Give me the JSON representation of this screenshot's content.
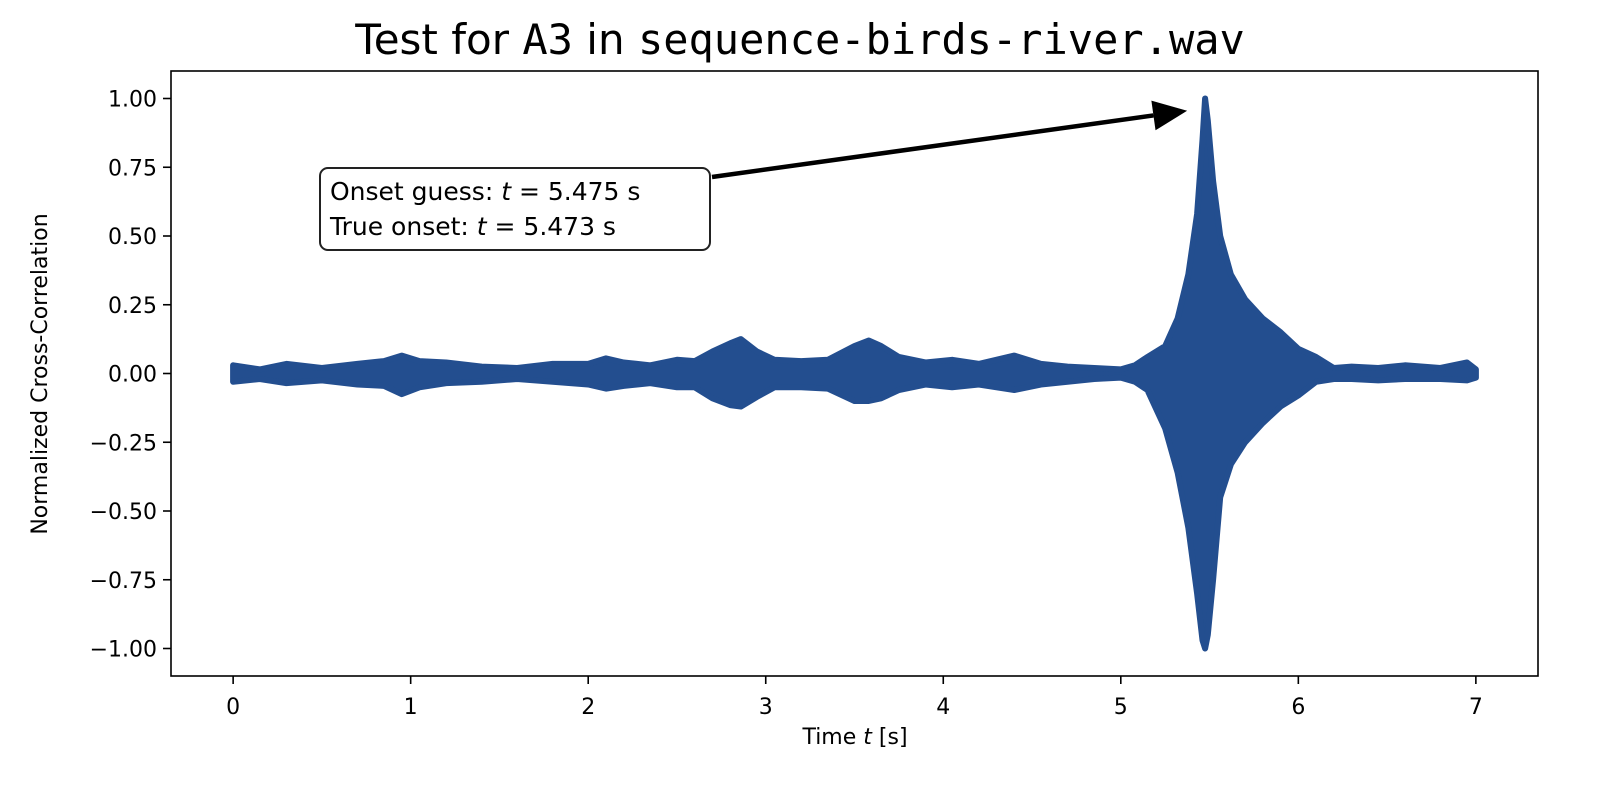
{
  "chart_data": {
    "type": "line",
    "title": {
      "prefix": "Test for ",
      "sound_name": "A3",
      "middle": " in ",
      "file_name": "sequence-birds-river.wav"
    },
    "xlabel": {
      "before": "Time ",
      "var": "t",
      "after": " [s]"
    },
    "ylabel": "Normalized Cross-Correlation",
    "xlim": [
      -0.35,
      7.35
    ],
    "ylim": [
      -1.1,
      1.1
    ],
    "xticks": [
      0,
      1,
      2,
      3,
      4,
      5,
      6,
      7
    ],
    "xtick_labels": [
      "0",
      "1",
      "2",
      "3",
      "4",
      "5",
      "6",
      "7"
    ],
    "yticks": [
      1.0,
      0.75,
      0.5,
      0.25,
      0.0,
      -0.25,
      -0.5,
      -0.75,
      -1.0
    ],
    "ytick_labels": [
      "1.00",
      "0.75",
      "0.50",
      "0.25",
      "0.00",
      "−0.25",
      "−0.50",
      "−0.75",
      "−1.00"
    ],
    "grid": false,
    "legend": "none",
    "series": [
      {
        "color": "#234e8f",
        "style": "dense oscillating signal shown as amplitude envelope",
        "envelope": {
          "x": [
            0.0,
            0.15,
            0.3,
            0.5,
            0.7,
            0.85,
            0.95,
            1.05,
            1.2,
            1.4,
            1.6,
            1.8,
            2.0,
            2.1,
            2.2,
            2.35,
            2.5,
            2.6,
            2.7,
            2.8,
            2.86,
            2.95,
            3.05,
            3.2,
            3.35,
            3.5,
            3.58,
            3.65,
            3.75,
            3.9,
            4.05,
            4.2,
            4.4,
            4.55,
            4.7,
            4.85,
            5.0,
            5.08,
            5.15,
            5.25,
            5.32,
            5.38,
            5.43,
            5.46,
            5.475,
            5.49,
            5.52,
            5.56,
            5.62,
            5.7,
            5.8,
            5.9,
            6.0,
            6.1,
            6.2,
            6.3,
            6.45,
            6.6,
            6.8,
            6.95,
            7.0
          ],
          "upper": [
            0.03,
            0.015,
            0.035,
            0.02,
            0.035,
            0.045,
            0.065,
            0.045,
            0.04,
            0.025,
            0.02,
            0.035,
            0.035,
            0.055,
            0.04,
            0.03,
            0.05,
            0.045,
            0.08,
            0.11,
            0.125,
            0.08,
            0.05,
            0.045,
            0.05,
            0.1,
            0.12,
            0.1,
            0.06,
            0.04,
            0.05,
            0.035,
            0.065,
            0.035,
            0.025,
            0.02,
            0.015,
            0.03,
            0.06,
            0.1,
            0.2,
            0.36,
            0.58,
            0.85,
            1.0,
            0.92,
            0.7,
            0.5,
            0.36,
            0.27,
            0.2,
            0.15,
            0.09,
            0.06,
            0.02,
            0.025,
            0.02,
            0.03,
            0.02,
            0.04,
            0.015
          ],
          "lower": [
            -0.03,
            -0.02,
            -0.035,
            -0.025,
            -0.04,
            -0.045,
            -0.075,
            -0.05,
            -0.035,
            -0.03,
            -0.02,
            -0.03,
            -0.04,
            -0.055,
            -0.045,
            -0.035,
            -0.05,
            -0.05,
            -0.09,
            -0.115,
            -0.12,
            -0.085,
            -0.05,
            -0.05,
            -0.055,
            -0.1,
            -0.1,
            -0.09,
            -0.06,
            -0.04,
            -0.05,
            -0.04,
            -0.06,
            -0.04,
            -0.03,
            -0.02,
            -0.015,
            -0.03,
            -0.06,
            -0.2,
            -0.36,
            -0.56,
            -0.8,
            -0.97,
            -1.0,
            -0.95,
            -0.75,
            -0.45,
            -0.33,
            -0.25,
            -0.18,
            -0.12,
            -0.08,
            -0.03,
            -0.02,
            -0.02,
            -0.025,
            -0.02,
            -0.02,
            -0.025,
            -0.015
          ]
        }
      }
    ],
    "annotation": {
      "line1_before": "Onset guess: ",
      "line1_var": "t",
      "line1_after": " = 5.475 s",
      "line2_before": "True onset: ",
      "line2_var": "t",
      "line2_after": " = 5.473 s",
      "arrow_target": {
        "x": 5.475,
        "y": 0.97
      },
      "text_anchor": {
        "x": 0.55,
        "y": 0.66
      }
    }
  }
}
